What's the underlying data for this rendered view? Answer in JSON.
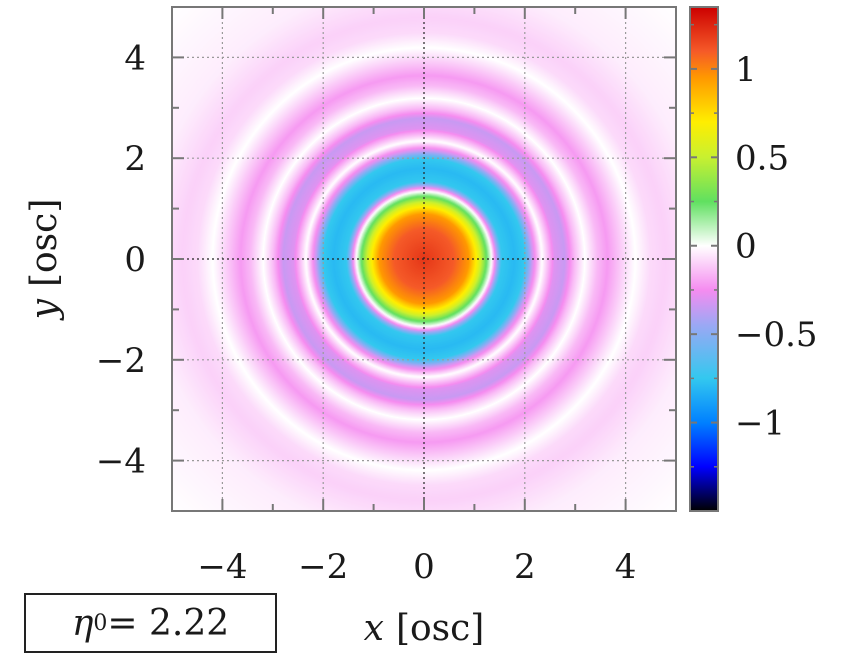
{
  "chart_data": {
    "type": "heatmap",
    "xlabel_var": "x",
    "xlabel_unit": "[osc]",
    "ylabel_var": "y",
    "ylabel_unit": "[osc]",
    "xlim": [
      -5,
      5
    ],
    "ylim": [
      -5,
      5
    ],
    "xticks": [
      -4,
      -2,
      0,
      2,
      4
    ],
    "yticks": [
      -4,
      -2,
      0,
      2,
      4
    ],
    "xtick_labels": [
      "−4",
      "−2",
      "0",
      "2",
      "4"
    ],
    "ytick_labels": [
      "4",
      "2",
      "0",
      "−2",
      "−4"
    ],
    "grid": true,
    "colorbar": {
      "range": [
        -1.5,
        1.35
      ],
      "ticks": [
        1,
        0.5,
        0,
        -0.5,
        -1
      ],
      "tick_labels": [
        "1",
        "0.5",
        "0",
        "−0.5",
        "−1"
      ],
      "colors": [
        {
          "value": -1.5,
          "color": "#000000"
        },
        {
          "value": -1.25,
          "color": "#0000ff"
        },
        {
          "value": -1.0,
          "color": "#0080ff"
        },
        {
          "value": -0.75,
          "color": "#33c8ef"
        },
        {
          "value": -0.45,
          "color": "#9aa8f4"
        },
        {
          "value": -0.25,
          "color": "#f58cf0"
        },
        {
          "value": 0.0,
          "color": "#ffffff"
        },
        {
          "value": 0.25,
          "color": "#60e060"
        },
        {
          "value": 0.5,
          "color": "#c8f030"
        },
        {
          "value": 0.7,
          "color": "#ffee00"
        },
        {
          "value": 0.95,
          "color": "#ff9900"
        },
        {
          "value": 1.1,
          "color": "#f55a28"
        },
        {
          "value": 1.35,
          "color": "#cc0000"
        }
      ]
    },
    "radial_profile": {
      "r": [
        0.0,
        0.3,
        0.6,
        0.9,
        1.1,
        1.25,
        1.35,
        1.55,
        1.8,
        2.0,
        2.15,
        2.35,
        2.6,
        2.8,
        3.0,
        3.2,
        3.45,
        3.65,
        3.9,
        4.2,
        4.5,
        4.8,
        5.5,
        7.1
      ],
      "value": [
        1.2,
        1.15,
        1.1,
        0.95,
        0.6,
        0.25,
        0.0,
        -0.75,
        -0.8,
        -0.75,
        -0.35,
        0.0,
        -0.3,
        -0.35,
        -0.15,
        0.0,
        -0.15,
        -0.22,
        -0.12,
        0.0,
        -0.08,
        -0.1,
        -0.04,
        0.0
      ]
    }
  },
  "parameter_box": {
    "symbol": "η",
    "subscript": "0",
    "rest": " = 2.22"
  }
}
